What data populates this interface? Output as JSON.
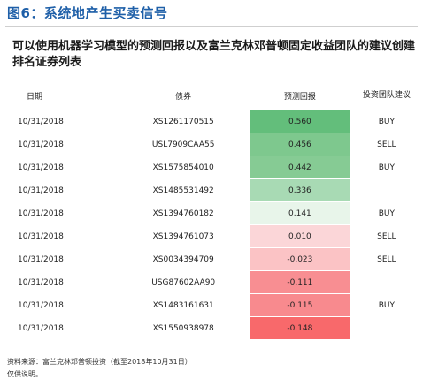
{
  "figure": {
    "title": "图6：系统地产生买卖信号",
    "subtitle": "可以使用机器学习模型的预测回报以及富兰克林邓普顿固定收益团队的建议创建排名证券列表"
  },
  "table": {
    "headers": {
      "date": "日期",
      "bond": "债券",
      "predicted_return": "预测回报",
      "recommendation": "投资团队建议"
    },
    "rows": [
      {
        "date": "10/31/2018",
        "bond": "XS1261170515",
        "predicted_return": "0.560",
        "recommendation": "BUY",
        "color": "#63be7b"
      },
      {
        "date": "10/31/2018",
        "bond": "USL7909CAA55",
        "predicted_return": "0.456",
        "recommendation": "SELL",
        "color": "#7ec88e"
      },
      {
        "date": "10/31/2018",
        "bond": "XS1575854010",
        "predicted_return": "0.442",
        "recommendation": "BUY",
        "color": "#86cb94"
      },
      {
        "date": "10/31/2018",
        "bond": "XS1485531492",
        "predicted_return": "0.336",
        "recommendation": "",
        "color": "#a8dab4"
      },
      {
        "date": "10/31/2018",
        "bond": "XS1394760182",
        "predicted_return": "0.141",
        "recommendation": "BUY",
        "color": "#e8f5ea"
      },
      {
        "date": "10/31/2018",
        "bond": "XS1394761073",
        "predicted_return": "0.010",
        "recommendation": "SELL",
        "color": "#fbd6d8"
      },
      {
        "date": "10/31/2018",
        "bond": "XS0034394709",
        "predicted_return": "-0.023",
        "recommendation": "SELL",
        "color": "#fbc3c5"
      },
      {
        "date": "10/31/2018",
        "bond": "USG87602AA90",
        "predicted_return": "-0.111",
        "recommendation": "",
        "color": "#f88e92"
      },
      {
        "date": "10/31/2018",
        "bond": "XS1483161631",
        "predicted_return": "-0.115",
        "recommendation": "BUY",
        "color": "#f88a8e"
      },
      {
        "date": "10/31/2018",
        "bond": "XS1550938978",
        "predicted_return": "-0.148",
        "recommendation": "",
        "color": "#f8696b"
      }
    ]
  },
  "footnote": {
    "source": "资料来源：富兰克林邓普顿投资（截至2018年10月31日）",
    "note": "仅供说明。"
  }
}
